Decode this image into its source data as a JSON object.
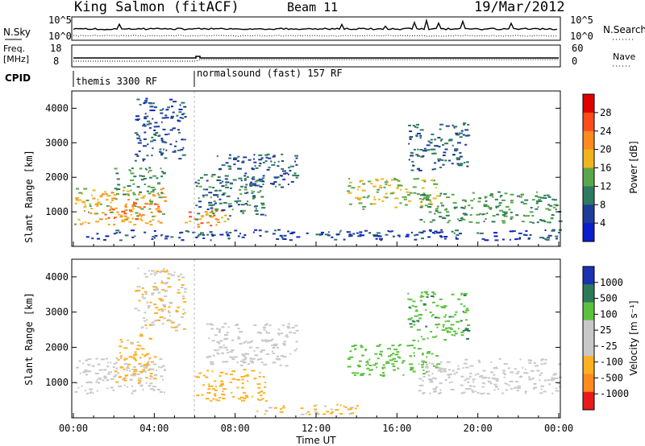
{
  "header": {
    "station": "King Salmon (fitACF)",
    "beam": "Beam 11",
    "date": "19/Mar/2012"
  },
  "status_panels": {
    "nsky_label": "N.Sky",
    "nsky_ticks": [
      "10^5",
      "10^0"
    ],
    "nsearch_label": "N.Search",
    "nsearch_ticks": [
      "10^5",
      "10^0"
    ],
    "freq_label_line1": "Freq.",
    "freq_label_line2": "[MHz]",
    "freq_ticks": [
      "18",
      "8"
    ],
    "nave_label": "Nave",
    "nave_ticks": [
      "60",
      "0"
    ],
    "cpid_label": "CPID",
    "cpid_segments": [
      {
        "label": "themis 3300 RF",
        "start_hour": 0,
        "end_hour": 6
      },
      {
        "label": "normalsound (fast) 157 RF",
        "start_hour": 6,
        "end_hour": 24
      }
    ]
  },
  "x_axis": {
    "label": "Time UT",
    "ticks": [
      "00:00",
      "04:00",
      "08:00",
      "12:00",
      "16:00",
      "20:00",
      "00:00"
    ]
  },
  "colorbars": {
    "power": {
      "label": "Power [dB]",
      "ticks": [
        "28",
        "24",
        "20",
        "16",
        "12",
        "8",
        "4"
      ],
      "colors": [
        "#e10000",
        "#ff4a1a",
        "#ff8a1e",
        "#f0b420",
        "#5aa64a",
        "#2e7a60",
        "#1e3c9a",
        "#0a1ecc"
      ]
    },
    "velocity": {
      "label": "Velocity [m s⁻¹]",
      "ticks": [
        "1000",
        "500",
        "100",
        "25",
        "-25",
        "-100",
        "-500",
        "-1000"
      ],
      "colors": [
        "#1a33b0",
        "#2d7a5a",
        "#5cc23d",
        "#c8c8c8",
        "#c8c8c8",
        "#ffb020",
        "#ff8a1e",
        "#e81a1a"
      ]
    }
  },
  "chart_data": [
    {
      "type": "heatmap",
      "title": "Power",
      "xlabel": "Time UT",
      "ylabel": "Slant Range [km]",
      "xlim": [
        0,
        24
      ],
      "ylim": [
        0,
        4500
      ],
      "yticks": [
        "4000",
        "3000",
        "2000",
        "1000"
      ],
      "colorbar_range_db": [
        0,
        30
      ],
      "echo_regions": [
        {
          "t0": 0.0,
          "t1": 4.5,
          "r0": 650,
          "r1": 1700,
          "value": 18
        },
        {
          "t0": 1.5,
          "t1": 4.2,
          "r0": 800,
          "r1": 1300,
          "value": 24
        },
        {
          "t0": 2.0,
          "t1": 4.5,
          "r0": 1500,
          "r1": 2300,
          "value": 12
        },
        {
          "t0": 3.0,
          "t1": 5.5,
          "r0": 2500,
          "r1": 4300,
          "value": 7
        },
        {
          "t0": 5.5,
          "t1": 7.5,
          "r0": 500,
          "r1": 1100,
          "value": 22
        },
        {
          "t0": 6.0,
          "t1": 9.5,
          "r0": 800,
          "r1": 2100,
          "value": 10
        },
        {
          "t0": 7.0,
          "t1": 11.0,
          "r0": 1700,
          "r1": 2700,
          "value": 8
        },
        {
          "t0": 0.5,
          "t1": 24.0,
          "r0": 200,
          "r1": 500,
          "value": 6
        },
        {
          "t0": 13.5,
          "t1": 18.0,
          "r0": 1100,
          "r1": 2000,
          "value": 16
        },
        {
          "t0": 16.5,
          "t1": 19.5,
          "r0": 2200,
          "r1": 3600,
          "value": 8
        },
        {
          "t0": 17.0,
          "t1": 24.0,
          "r0": 700,
          "r1": 1600,
          "value": 12
        }
      ]
    },
    {
      "type": "heatmap",
      "title": "Velocity",
      "xlabel": "Time UT",
      "ylabel": "Slant Range [km]",
      "xlim": [
        0,
        24
      ],
      "ylim": [
        0,
        4500
      ],
      "yticks": [
        "4000",
        "3000",
        "2000",
        "1000"
      ],
      "colorbar_range_ms": [
        -1000,
        1000
      ],
      "echo_regions": [
        {
          "t0": 0.0,
          "t1": 4.5,
          "r0": 700,
          "r1": 1700,
          "value": 0
        },
        {
          "t0": 2.0,
          "t1": 4.0,
          "r0": 1000,
          "r1": 2400,
          "value": -150
        },
        {
          "t0": 3.0,
          "t1": 5.5,
          "r0": 2500,
          "r1": 4300,
          "value": -80
        },
        {
          "t0": 6.0,
          "t1": 9.5,
          "r0": 500,
          "r1": 1400,
          "value": -250
        },
        {
          "t0": 6.5,
          "t1": 11.0,
          "r0": 1500,
          "r1": 2700,
          "value": 0
        },
        {
          "t0": 9.0,
          "t1": 14.0,
          "r0": 100,
          "r1": 400,
          "value": -120
        },
        {
          "t0": 13.5,
          "t1": 18.0,
          "r0": 1200,
          "r1": 2100,
          "value": 250
        },
        {
          "t0": 16.5,
          "t1": 19.5,
          "r0": 2200,
          "r1": 3600,
          "value": 450
        },
        {
          "t0": 17.0,
          "t1": 24.0,
          "r0": 700,
          "r1": 1700,
          "value": 0
        }
      ]
    }
  ]
}
